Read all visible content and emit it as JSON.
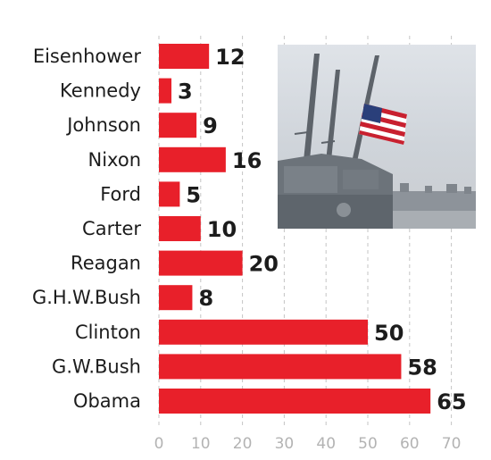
{
  "chart_data": {
    "type": "bar",
    "orientation": "horizontal",
    "categories": [
      "Eisenhower",
      "Kennedy",
      "Johnson",
      "Nixon",
      "Ford",
      "Carter",
      "Reagan",
      "G.H.W.Bush",
      "Clinton",
      "G.W.Bush",
      "Obama"
    ],
    "values": [
      12,
      3,
      9,
      16,
      5,
      10,
      20,
      8,
      50,
      58,
      65
    ],
    "xlim": [
      0,
      70
    ],
    "xticks": [
      0,
      10,
      20,
      30,
      40,
      50,
      60,
      70
    ],
    "grid": "vertical dashed",
    "bar_color": "#e8202a",
    "inset_photo": "navy-ship-flag-half-mast-photo"
  }
}
